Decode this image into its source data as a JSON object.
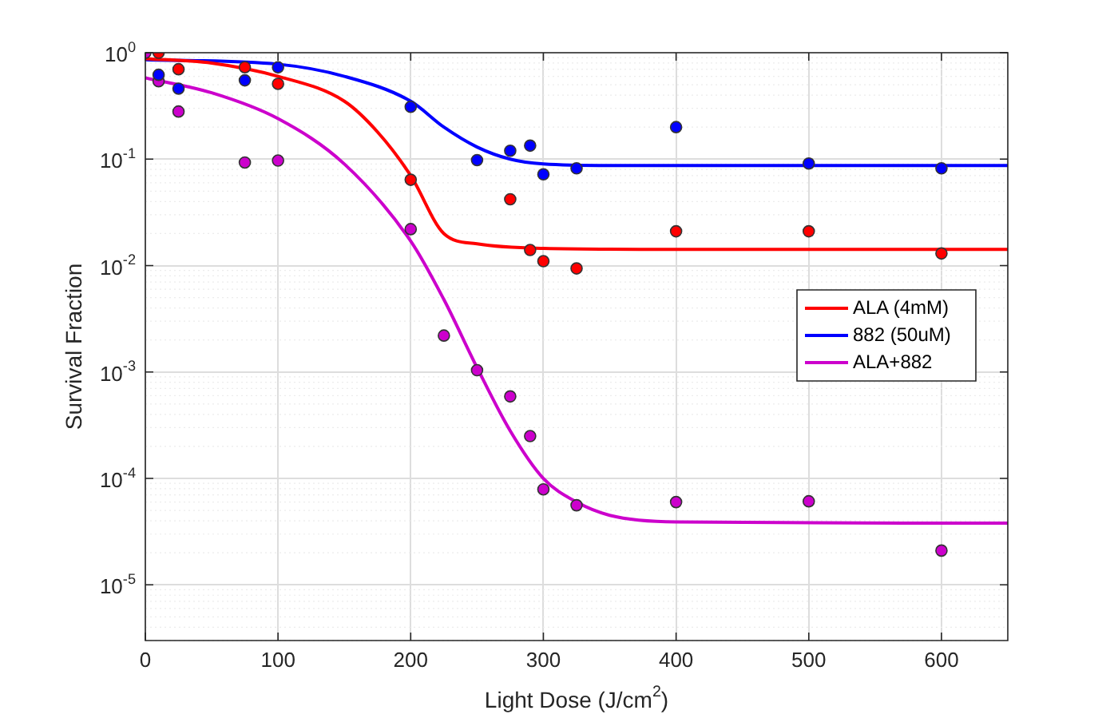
{
  "chart_data": {
    "type": "scatter",
    "xlabel": "Light Dose (J/cm$^{2}$)",
    "ylabel": "Survival Fraction",
    "xlim": [
      0,
      650
    ],
    "xticks": [
      0,
      100,
      200,
      300,
      400,
      500,
      600
    ],
    "ylim": [
      3e-06,
      1
    ],
    "yticks": [
      {
        "value": 1e-05,
        "label": "10$^{-5}$"
      },
      {
        "value": 0.0001,
        "label": "10$^{-4}$"
      },
      {
        "value": 0.001,
        "label": "10$^{-3}$"
      },
      {
        "value": 0.01,
        "label": "10$^{-2}$"
      },
      {
        "value": 0.1,
        "label": "10$^{-1}$"
      },
      {
        "value": 1,
        "label": "10$^{0}$"
      }
    ],
    "log": "y",
    "grid": true,
    "legend": "right",
    "marker": "circle",
    "series": [
      {
        "color": "#ff0000",
        "x": [
          10,
          25,
          75,
          100,
          200,
          275,
          290,
          300,
          325,
          400,
          500,
          600
        ],
        "values": [
          1.0,
          0.7,
          0.73,
          0.51,
          0.064,
          0.042,
          0.014,
          0.011,
          0.0094,
          0.021,
          0.021,
          0.013
        ]
      },
      {
        "color": "#0000ff",
        "x": [
          10,
          25,
          75,
          100,
          200,
          250,
          275,
          290,
          300,
          325,
          400,
          500,
          600
        ],
        "values": [
          0.62,
          0.46,
          0.55,
          0.73,
          0.31,
          0.098,
          0.12,
          0.134,
          0.072,
          0.082,
          0.2,
          0.091,
          0.082
        ]
      },
      {
        "color": "#cc00cc",
        "x": [
          0,
          10,
          25,
          75,
          100,
          200,
          225,
          250,
          275,
          290,
          300,
          325,
          400,
          500,
          600
        ],
        "values": [
          1.0,
          0.54,
          0.28,
          0.093,
          0.097,
          0.022,
          0.0022,
          0.00104,
          0.00059,
          0.00025,
          7.9e-05,
          5.6e-05,
          6e-05,
          6.1e-05,
          2.1e-05
        ]
      },
      {
        "type": "line",
        "marker": "none",
        "name": "ALA (4mM)",
        "color": "#ff0000",
        "x": [
          0,
          50,
          100,
          150,
          175,
          200,
          225,
          250,
          300,
          400,
          650
        ],
        "values": [
          0.88,
          0.8,
          0.6,
          0.35,
          0.18,
          0.07,
          0.02,
          0.016,
          0.0145,
          0.0142,
          0.0142
        ]
      },
      {
        "type": "line",
        "marker": "none",
        "name": "882 (50uM)",
        "color": "#0000ff",
        "x": [
          0,
          100,
          150,
          200,
          225,
          250,
          275,
          300,
          350,
          650
        ],
        "values": [
          0.86,
          0.78,
          0.6,
          0.35,
          0.2,
          0.13,
          0.1,
          0.09,
          0.087,
          0.087
        ]
      },
      {
        "type": "line",
        "marker": "none",
        "name": "ALA+882",
        "color": "#cc00cc",
        "x": [
          0,
          50,
          100,
          150,
          200,
          225,
          250,
          275,
          300,
          325,
          350,
          400,
          650
        ],
        "values": [
          0.58,
          0.42,
          0.24,
          0.09,
          0.017,
          0.0048,
          0.0011,
          0.00028,
          0.0001,
          6e-05,
          4.5e-05,
          3.9e-05,
          3.8e-05
        ]
      }
    ]
  }
}
